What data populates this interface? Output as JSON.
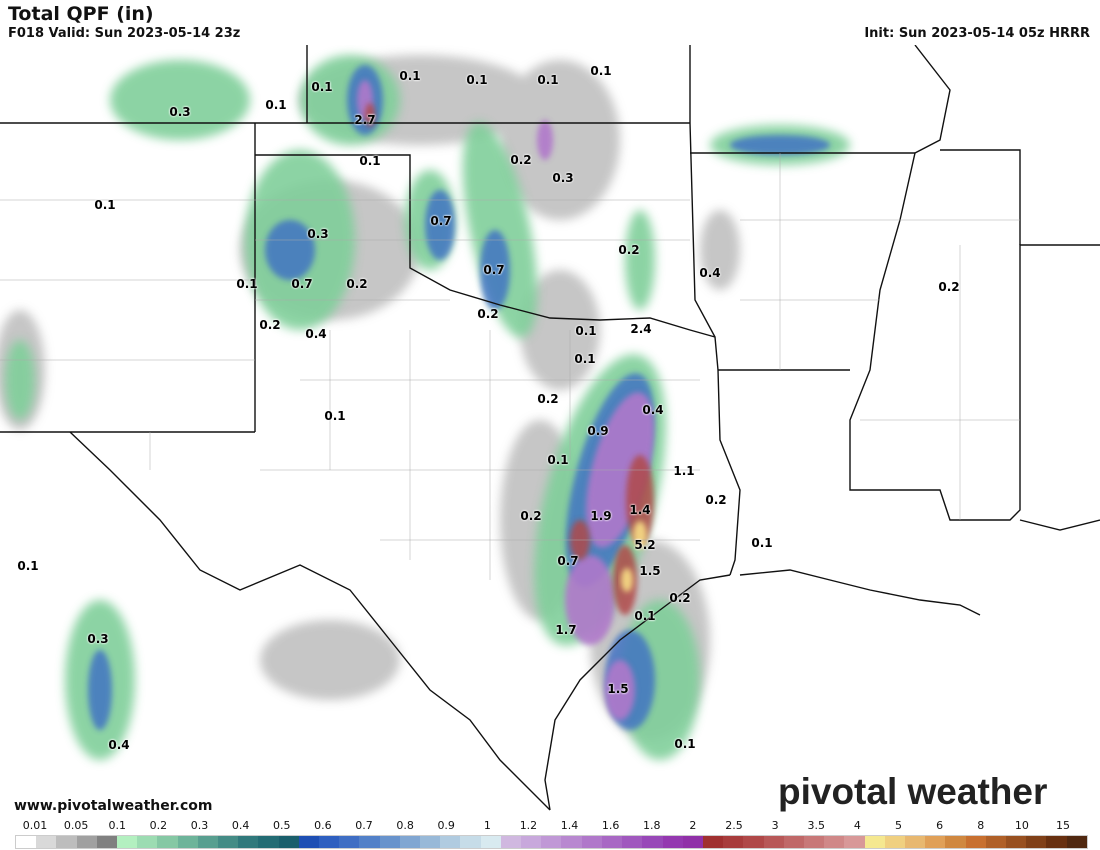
{
  "header": {
    "title": "Total QPF (in)",
    "valid": "F018 Valid: Sun 2023-05-14 23z",
    "init": "Init: Sun 2023-05-14 05z HRRR"
  },
  "footer": {
    "website": "www.pivotalweather.com",
    "brand": "pivotal weather"
  },
  "legend": {
    "labels": [
      "0.01",
      "0.05",
      "0.1",
      "0.2",
      "0.3",
      "0.4",
      "0.5",
      "0.6",
      "0.7",
      "0.8",
      "0.9",
      "1",
      "1.2",
      "1.4",
      "1.6",
      "1.8",
      "2",
      "2.5",
      "3",
      "3.5",
      "4",
      "5",
      "6",
      "8",
      "10",
      "15"
    ],
    "colors": [
      "#ffffff",
      "#d9d9d9",
      "#bdbdbd",
      "#a0a0a0",
      "#808080",
      "#b3f0c0",
      "#9cdcb2",
      "#85c8a4",
      "#6db49a",
      "#589f90",
      "#448c86",
      "#30797c",
      "#236c74",
      "#1a5f6c",
      "#1e4fb4",
      "#2e5fc0",
      "#3f6ec4",
      "#5280c8",
      "#6893cc",
      "#80a6d2",
      "#98b9d8",
      "#b0cbe0",
      "#c6dce8",
      "#d8eaf0",
      "#d0b8e0",
      "#c8a8dc",
      "#c098d6",
      "#b888d0",
      "#b078ca",
      "#a868c4",
      "#a058be",
      "#9848b8",
      "#9438b0",
      "#9030a8",
      "#a03030",
      "#a83c3c",
      "#b04848",
      "#b85858",
      "#c06868",
      "#c87878",
      "#d08888",
      "#d89898",
      "#f5e890",
      "#f0d080",
      "#e8b870",
      "#e0a058",
      "#d08840",
      "#c87030",
      "#b06028",
      "#985020",
      "#804018",
      "#683010",
      "#502810"
    ]
  },
  "map": {
    "labels": [
      "0.1",
      "0.1",
      "0.1",
      "0.1",
      "0.1",
      "0.3",
      "0.1",
      "2.7",
      "0.1",
      "0.2",
      "0.3",
      "0.1",
      "0.7",
      "0.3",
      "0.2",
      "0.4",
      "0.7",
      "0.1",
      "0.7",
      "0.2",
      "0.2",
      "0.2",
      "0.1",
      "2.4",
      "0.2",
      "0.4",
      "0.1",
      "0.2",
      "0.1",
      "0.4",
      "0.9",
      "0.1",
      "1.1",
      "0.2",
      "0.2",
      "1.9",
      "1.4",
      "5.2",
      "0.1",
      "0.7",
      "1.5",
      "0.1",
      "0.2",
      "0.1",
      "1.7",
      "0.3",
      "1.5",
      "0.4",
      "0.1"
    ]
  }
}
